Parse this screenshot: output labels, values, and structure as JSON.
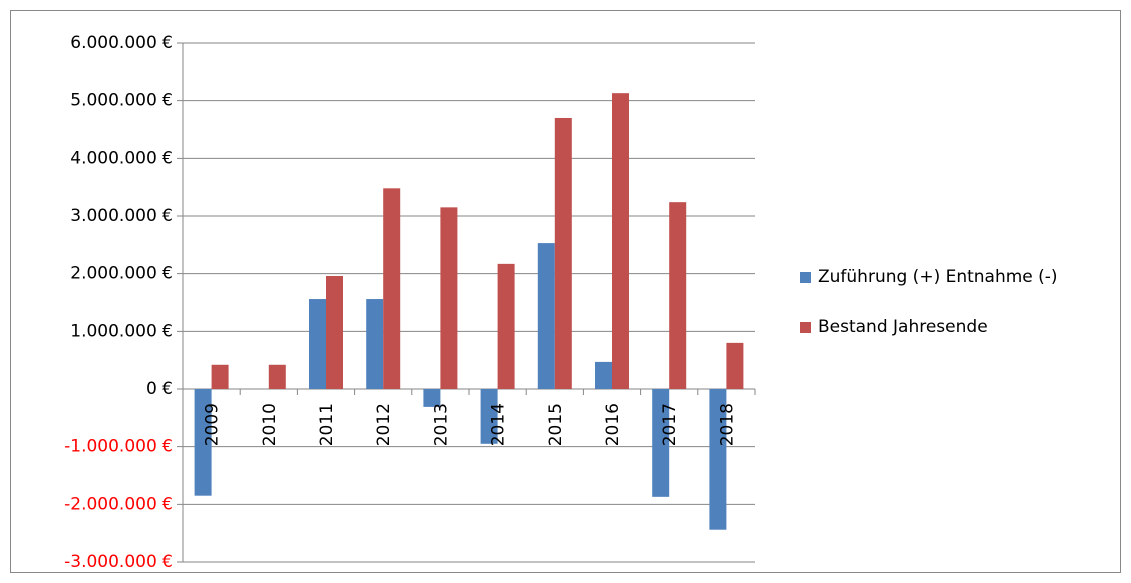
{
  "chart_data": {
    "type": "bar",
    "categories": [
      "2009",
      "2010",
      "2011",
      "2012",
      "2013",
      "2014",
      "2015",
      "2016",
      "2017",
      "2018"
    ],
    "series": [
      {
        "name": "Zuführung (+) Entnahme (-)",
        "color": "#4f81bd",
        "values": [
          -1850000,
          0,
          1560000,
          1560000,
          -310000,
          -950000,
          2530000,
          470000,
          -1870000,
          -2440000
        ]
      },
      {
        "name": "Bestand Jahresende",
        "color": "#c0504d",
        "values": [
          420000,
          420000,
          1960000,
          3480000,
          3150000,
          2170000,
          4700000,
          5130000,
          3240000,
          800000
        ]
      }
    ],
    "ylim": [
      -3000000,
      6000000
    ],
    "yticks": [
      {
        "value": -3000000,
        "label": "-3.000.000 €"
      },
      {
        "value": -2000000,
        "label": "-2.000.000 €"
      },
      {
        "value": -1000000,
        "label": "-1.000.000 €"
      },
      {
        "value": 0,
        "label": "0 €"
      },
      {
        "value": 1000000,
        "label": "1.000.000 €"
      },
      {
        "value": 2000000,
        "label": "2.000.000 €"
      },
      {
        "value": 3000000,
        "label": "3.000.000 €"
      },
      {
        "value": 4000000,
        "label": "4.000.000 €"
      },
      {
        "value": 5000000,
        "label": "5.000.000 €"
      },
      {
        "value": 6000000,
        "label": "6.000.000 €"
      }
    ],
    "grid": true,
    "legend": "right"
  }
}
